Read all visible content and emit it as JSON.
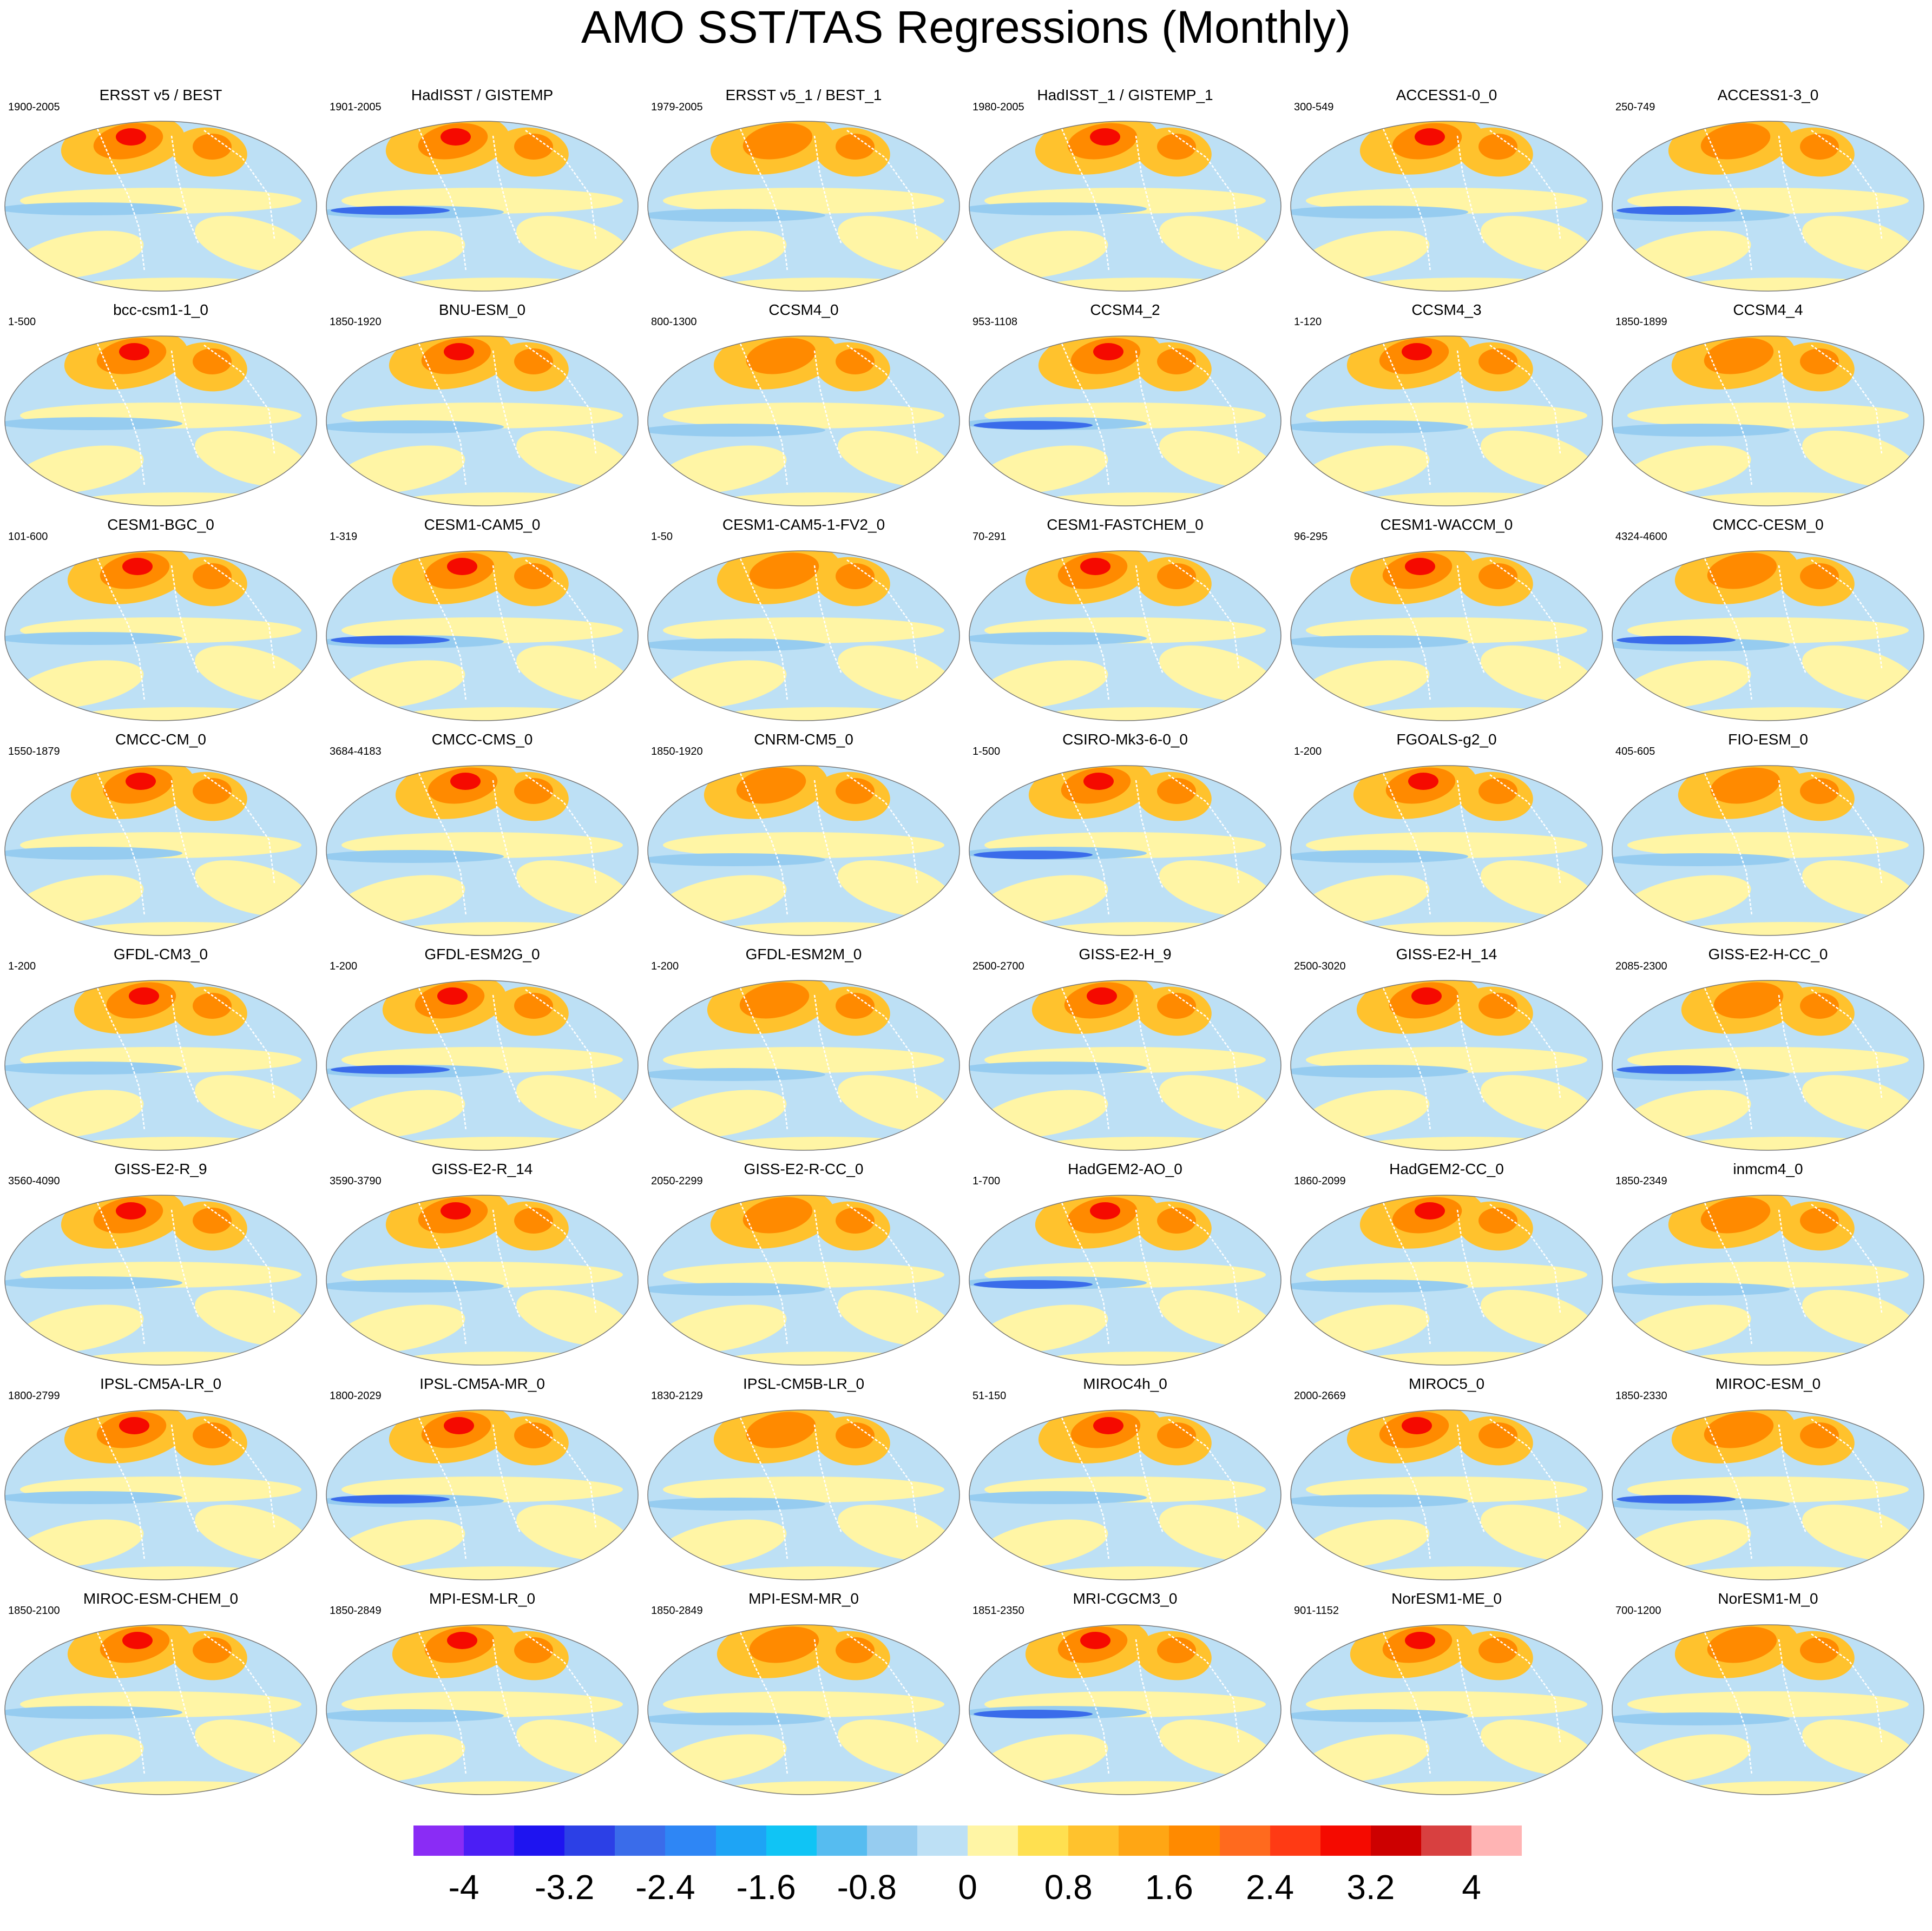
{
  "title": "AMO SST/TAS Regressions (Monthly)",
  "panels": [
    {
      "name": "ERSST v5 / BEST",
      "years": "1900-2005"
    },
    {
      "name": "HadISST / GISTEMP",
      "years": "1901-2005"
    },
    {
      "name": "ERSST v5_1 / BEST_1",
      "years": "1979-2005"
    },
    {
      "name": "HadISST_1 / GISTEMP_1",
      "years": "1980-2005"
    },
    {
      "name": "ACCESS1-0_0",
      "years": "300-549"
    },
    {
      "name": "ACCESS1-3_0",
      "years": "250-749"
    },
    {
      "name": "bcc-csm1-1_0",
      "years": "1-500"
    },
    {
      "name": "BNU-ESM_0",
      "years": "1850-1920"
    },
    {
      "name": "CCSM4_0",
      "years": "800-1300"
    },
    {
      "name": "CCSM4_2",
      "years": "953-1108"
    },
    {
      "name": "CCSM4_3",
      "years": "1-120"
    },
    {
      "name": "CCSM4_4",
      "years": "1850-1899"
    },
    {
      "name": "CESM1-BGC_0",
      "years": "101-600"
    },
    {
      "name": "CESM1-CAM5_0",
      "years": "1-319"
    },
    {
      "name": "CESM1-CAM5-1-FV2_0",
      "years": "1-50"
    },
    {
      "name": "CESM1-FASTCHEM_0",
      "years": "70-291"
    },
    {
      "name": "CESM1-WACCM_0",
      "years": "96-295"
    },
    {
      "name": "CMCC-CESM_0",
      "years": "4324-4600"
    },
    {
      "name": "CMCC-CM_0",
      "years": "1550-1879"
    },
    {
      "name": "CMCC-CMS_0",
      "years": "3684-4183"
    },
    {
      "name": "CNRM-CM5_0",
      "years": "1850-1920"
    },
    {
      "name": "CSIRO-Mk3-6-0_0",
      "years": "1-500"
    },
    {
      "name": "FGOALS-g2_0",
      "years": "1-200"
    },
    {
      "name": "FIO-ESM_0",
      "years": "405-605"
    },
    {
      "name": "GFDL-CM3_0",
      "years": "1-200"
    },
    {
      "name": "GFDL-ESM2G_0",
      "years": "1-200"
    },
    {
      "name": "GFDL-ESM2M_0",
      "years": "1-200"
    },
    {
      "name": "GISS-E2-H_9",
      "years": "2500-2700"
    },
    {
      "name": "GISS-E2-H_14",
      "years": "2500-3020"
    },
    {
      "name": "GISS-E2-H-CC_0",
      "years": "2085-2300"
    },
    {
      "name": "GISS-E2-R_9",
      "years": "3560-4090"
    },
    {
      "name": "GISS-E2-R_14",
      "years": "3590-3790"
    },
    {
      "name": "GISS-E2-R-CC_0",
      "years": "2050-2299"
    },
    {
      "name": "HadGEM2-AO_0",
      "years": "1-700"
    },
    {
      "name": "HadGEM2-CC_0",
      "years": "1860-2099"
    },
    {
      "name": "inmcm4_0",
      "years": "1850-2349"
    },
    {
      "name": "IPSL-CM5A-LR_0",
      "years": "1800-2799"
    },
    {
      "name": "IPSL-CM5A-MR_0",
      "years": "1800-2029"
    },
    {
      "name": "IPSL-CM5B-LR_0",
      "years": "1830-2129"
    },
    {
      "name": "MIROC4h_0",
      "years": "51-150"
    },
    {
      "name": "MIROC5_0",
      "years": "2000-2669"
    },
    {
      "name": "MIROC-ESM_0",
      "years": "1850-2330"
    },
    {
      "name": "MIROC-ESM-CHEM_0",
      "years": "1850-2100"
    },
    {
      "name": "MPI-ESM-LR_0",
      "years": "1850-2849"
    },
    {
      "name": "MPI-ESM-MR_0",
      "years": "1850-2849"
    },
    {
      "name": "MRI-CGCM3_0",
      "years": "1851-2350"
    },
    {
      "name": "NorESM1-ME_0",
      "years": "901-1152"
    },
    {
      "name": "NorESM1-M_0",
      "years": "700-1200"
    }
  ],
  "colorbar": {
    "colors": [
      "#8a2cf5",
      "#4b1ef5",
      "#1e14f0",
      "#2c40e6",
      "#3a6cea",
      "#2e86f5",
      "#1ea4f5",
      "#10c4f5",
      "#56bcf0",
      "#96ccf0",
      "#bde0f5",
      "#fff5a5",
      "#ffe050",
      "#ffc22d",
      "#ffa614",
      "#ff8a00",
      "#ff6a1e",
      "#ff3a14",
      "#f50a00",
      "#cd0000",
      "#d84040",
      "#ffb4b4"
    ],
    "tick_labels": [
      "-4",
      "-3.2",
      "-2.4",
      "-1.6",
      "-0.8",
      "0",
      "0.8",
      "1.6",
      "2.4",
      "3.2",
      "4"
    ]
  },
  "palette": {
    "ocean_neg_light": "#bde0f5",
    "ocean_neg": "#96ccf0",
    "ocean_neg_strong": "#3a6cea",
    "pos_light": "#fff5a5",
    "pos": "#ffc22d",
    "pos_mid": "#ff8a00",
    "pos_strong": "#f50a00",
    "coast": "#ffffff"
  }
}
